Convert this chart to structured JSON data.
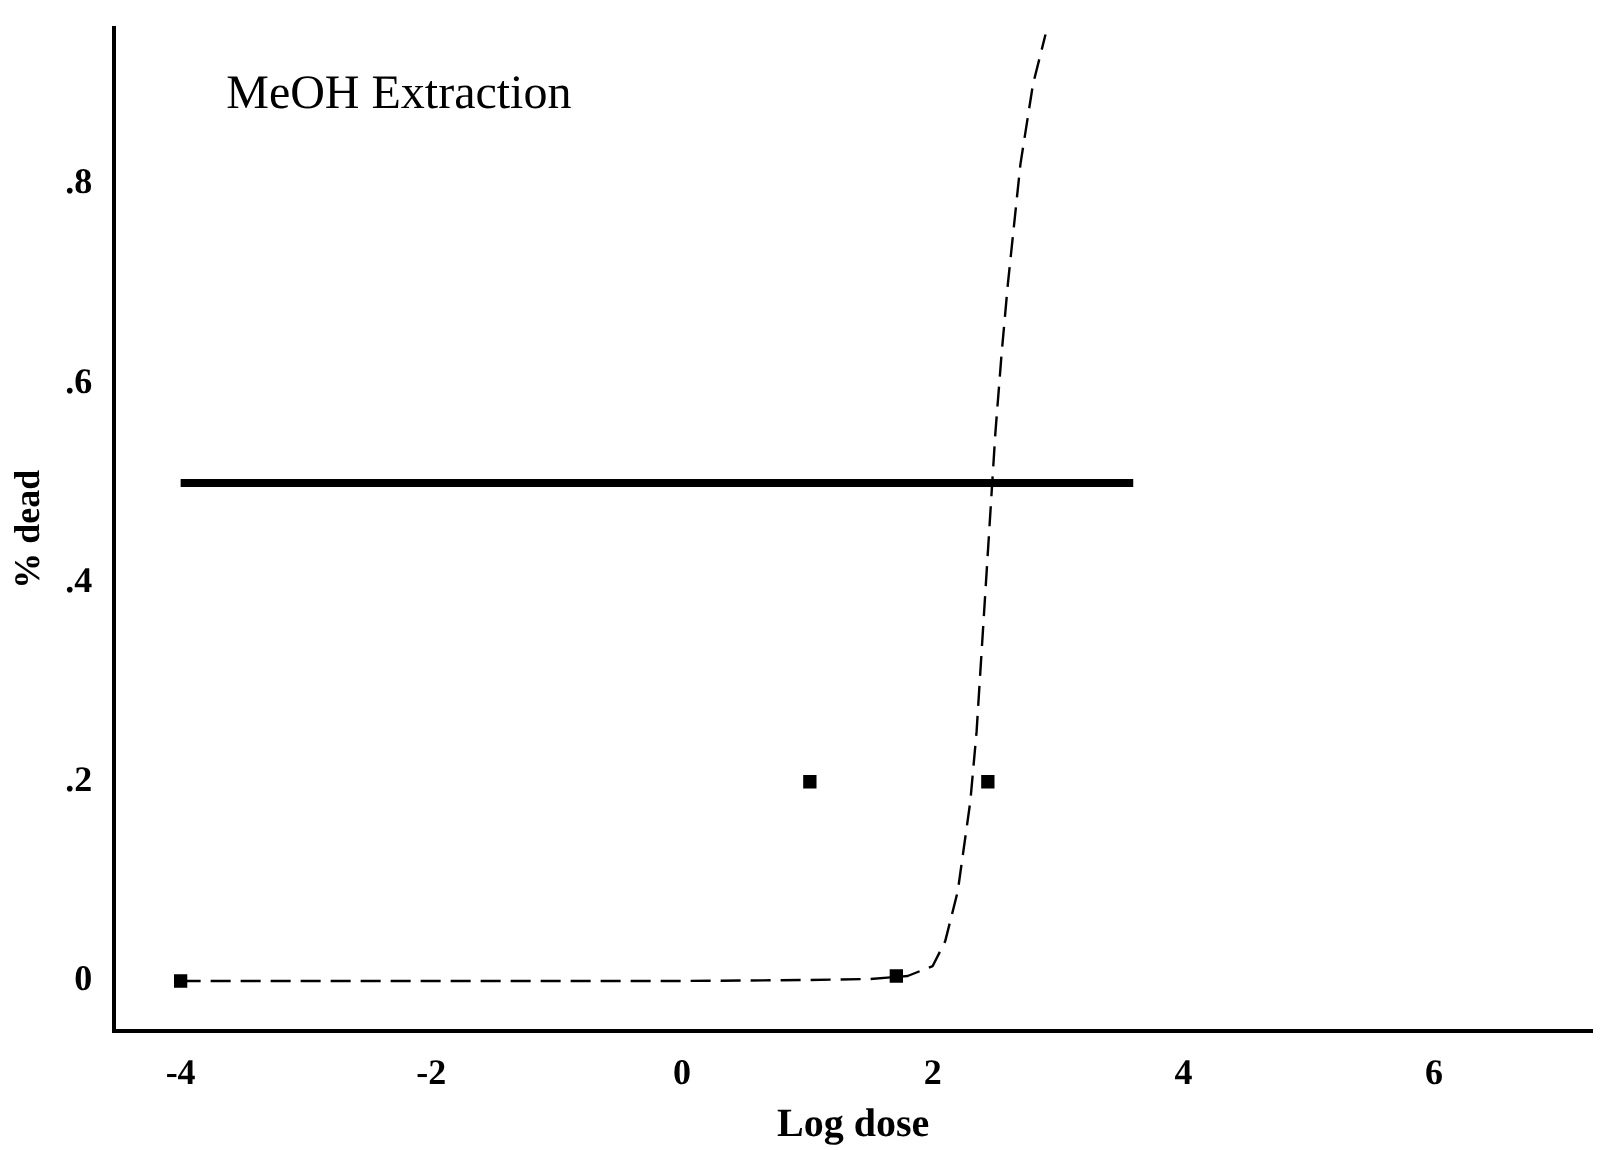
{
  "chart_data": {
    "type": "scatter",
    "title": "MeOH Extraction",
    "xlabel": "Log dose",
    "ylabel": "% dead",
    "xlim": [
      -4.53,
      7.26
    ],
    "ylim": [
      -0.05,
      0.957
    ],
    "xticks": [
      -4,
      -2,
      0,
      2,
      4,
      6
    ],
    "yticks": [
      {
        "value": 0,
        "label": "0"
      },
      {
        "value": 0.2,
        "label": ".2"
      },
      {
        "value": 0.4,
        "label": ".4"
      },
      {
        "value": 0.6,
        "label": ".6"
      },
      {
        "value": 0.8,
        "label": ".8"
      }
    ],
    "grid": false,
    "legend": false,
    "series": [
      {
        "type": "scatter",
        "color": "#000000",
        "marker": "square",
        "x": [
          -4,
          1.71,
          1.02,
          2.44
        ],
        "values": [
          0,
          0.005,
          0.2,
          0.2
        ]
      },
      {
        "type": "line",
        "color": "#000000",
        "line_style": "solid",
        "marker": "none",
        "x": [
          -4,
          3.6
        ],
        "values": [
          0.5,
          0.5
        ]
      },
      {
        "type": "line",
        "color": "#000000",
        "line_style": "dashed",
        "marker": "none",
        "x": [
          -4,
          -2,
          0,
          1,
          1.5,
          1.8,
          2,
          2.1,
          2.2,
          2.3,
          2.35,
          2.4,
          2.45,
          2.5,
          2.55,
          2.6,
          2.7,
          2.8,
          2.9
        ],
        "values": [
          0,
          0,
          0,
          0.001,
          0.002,
          0.005,
          0.015,
          0.04,
          0.09,
          0.18,
          0.25,
          0.35,
          0.45,
          0.55,
          0.63,
          0.7,
          0.82,
          0.9,
          0.95
        ]
      }
    ]
  }
}
